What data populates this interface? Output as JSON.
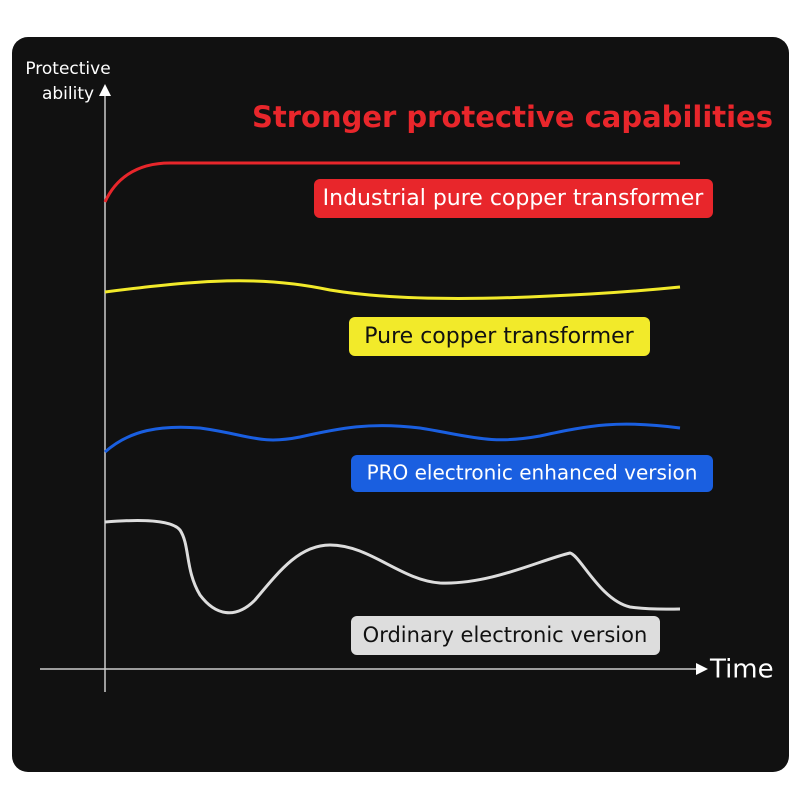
{
  "title": "Stronger protective capabilities",
  "y_axis_label": [
    "Protective",
    "ability"
  ],
  "x_axis_label": "Time",
  "curves": [
    {
      "label": "Industrial pure copper transformer"
    },
    {
      "label": "Pure copper transformer"
    },
    {
      "label": "PRO electronic enhanced version"
    },
    {
      "label": "Ordinary electronic version"
    }
  ]
}
